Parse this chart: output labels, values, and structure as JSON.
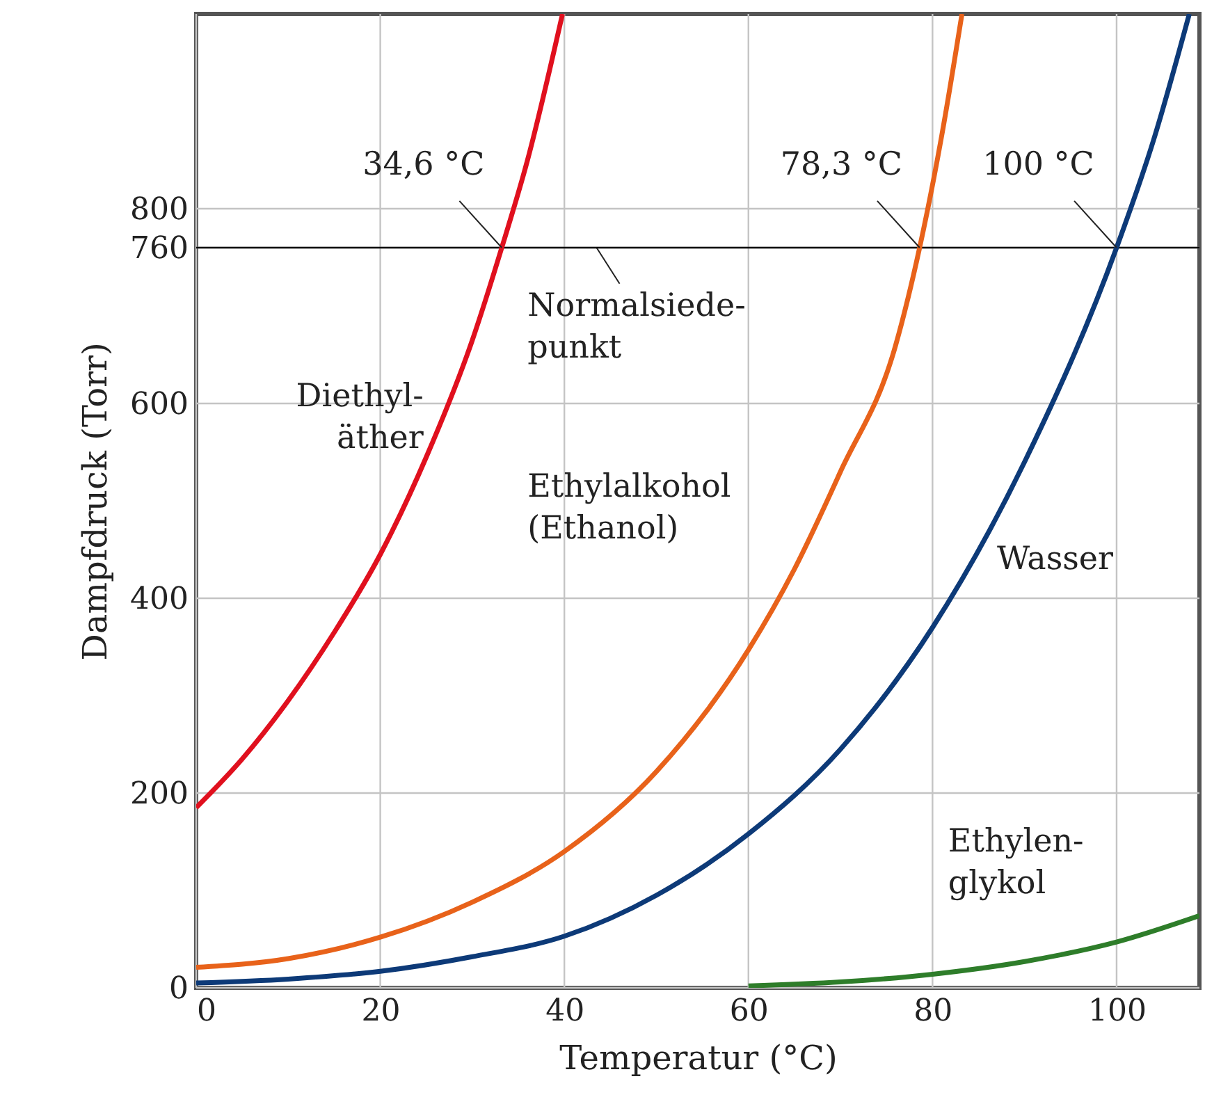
{
  "chart_data": {
    "type": "line",
    "xlabel": "Temperatur (°C)",
    "ylabel": "Dampfdruck (Torr)",
    "xlim": [
      0,
      109
    ],
    "ylim": [
      0,
      1000
    ],
    "xticks": [
      0,
      20,
      40,
      60,
      80,
      100
    ],
    "yticks": [
      0,
      200,
      400,
      600,
      760,
      800
    ],
    "grid": true,
    "series": [
      {
        "name": "Diethyl-\näther",
        "color": "#e0101e",
        "x": [
          0,
          5,
          10,
          15,
          20,
          25,
          30,
          33.2,
          36,
          39.8
        ],
        "values": [
          185,
          235,
          295,
          365,
          445,
          545,
          665,
          760,
          850,
          1000
        ]
      },
      {
        "name": "Ethylalkohol\n(Ethanol)",
        "color": "#e8621a",
        "x": [
          0,
          10,
          20,
          30,
          40,
          50,
          60,
          65,
          70,
          76,
          78.6,
          81,
          83.2
        ],
        "values": [
          21,
          30,
          52,
          88,
          140,
          222,
          347,
          430,
          530,
          660,
          760,
          875,
          1000
        ]
      },
      {
        "name": "Wasser",
        "color": "#0d3a78",
        "x": [
          0,
          10,
          20,
          30,
          40,
          50,
          60,
          70,
          80,
          90,
          100,
          104,
          107.9
        ],
        "values": [
          5,
          9,
          17,
          32,
          53,
          95,
          158,
          245,
          370,
          540,
          760,
          870,
          1000
        ]
      },
      {
        "name": "Ethylen-\nglykol",
        "color": "#2e7d2a",
        "x": [
          60,
          70,
          80,
          90,
          100,
          109
        ],
        "values": [
          2,
          6,
          14,
          27,
          47,
          74
        ]
      }
    ],
    "ref_lines": [
      {
        "axis": "y",
        "value": 760,
        "label": "Normalsiede-\npunkt",
        "color": "#000000"
      }
    ],
    "annotations": [
      {
        "text": "34,6 °C",
        "x": 33.2,
        "y": 760
      },
      {
        "text": "78,3 °C",
        "x": 78.6,
        "y": 760
      },
      {
        "text": "100 °C",
        "x": 100,
        "y": 760
      }
    ]
  }
}
